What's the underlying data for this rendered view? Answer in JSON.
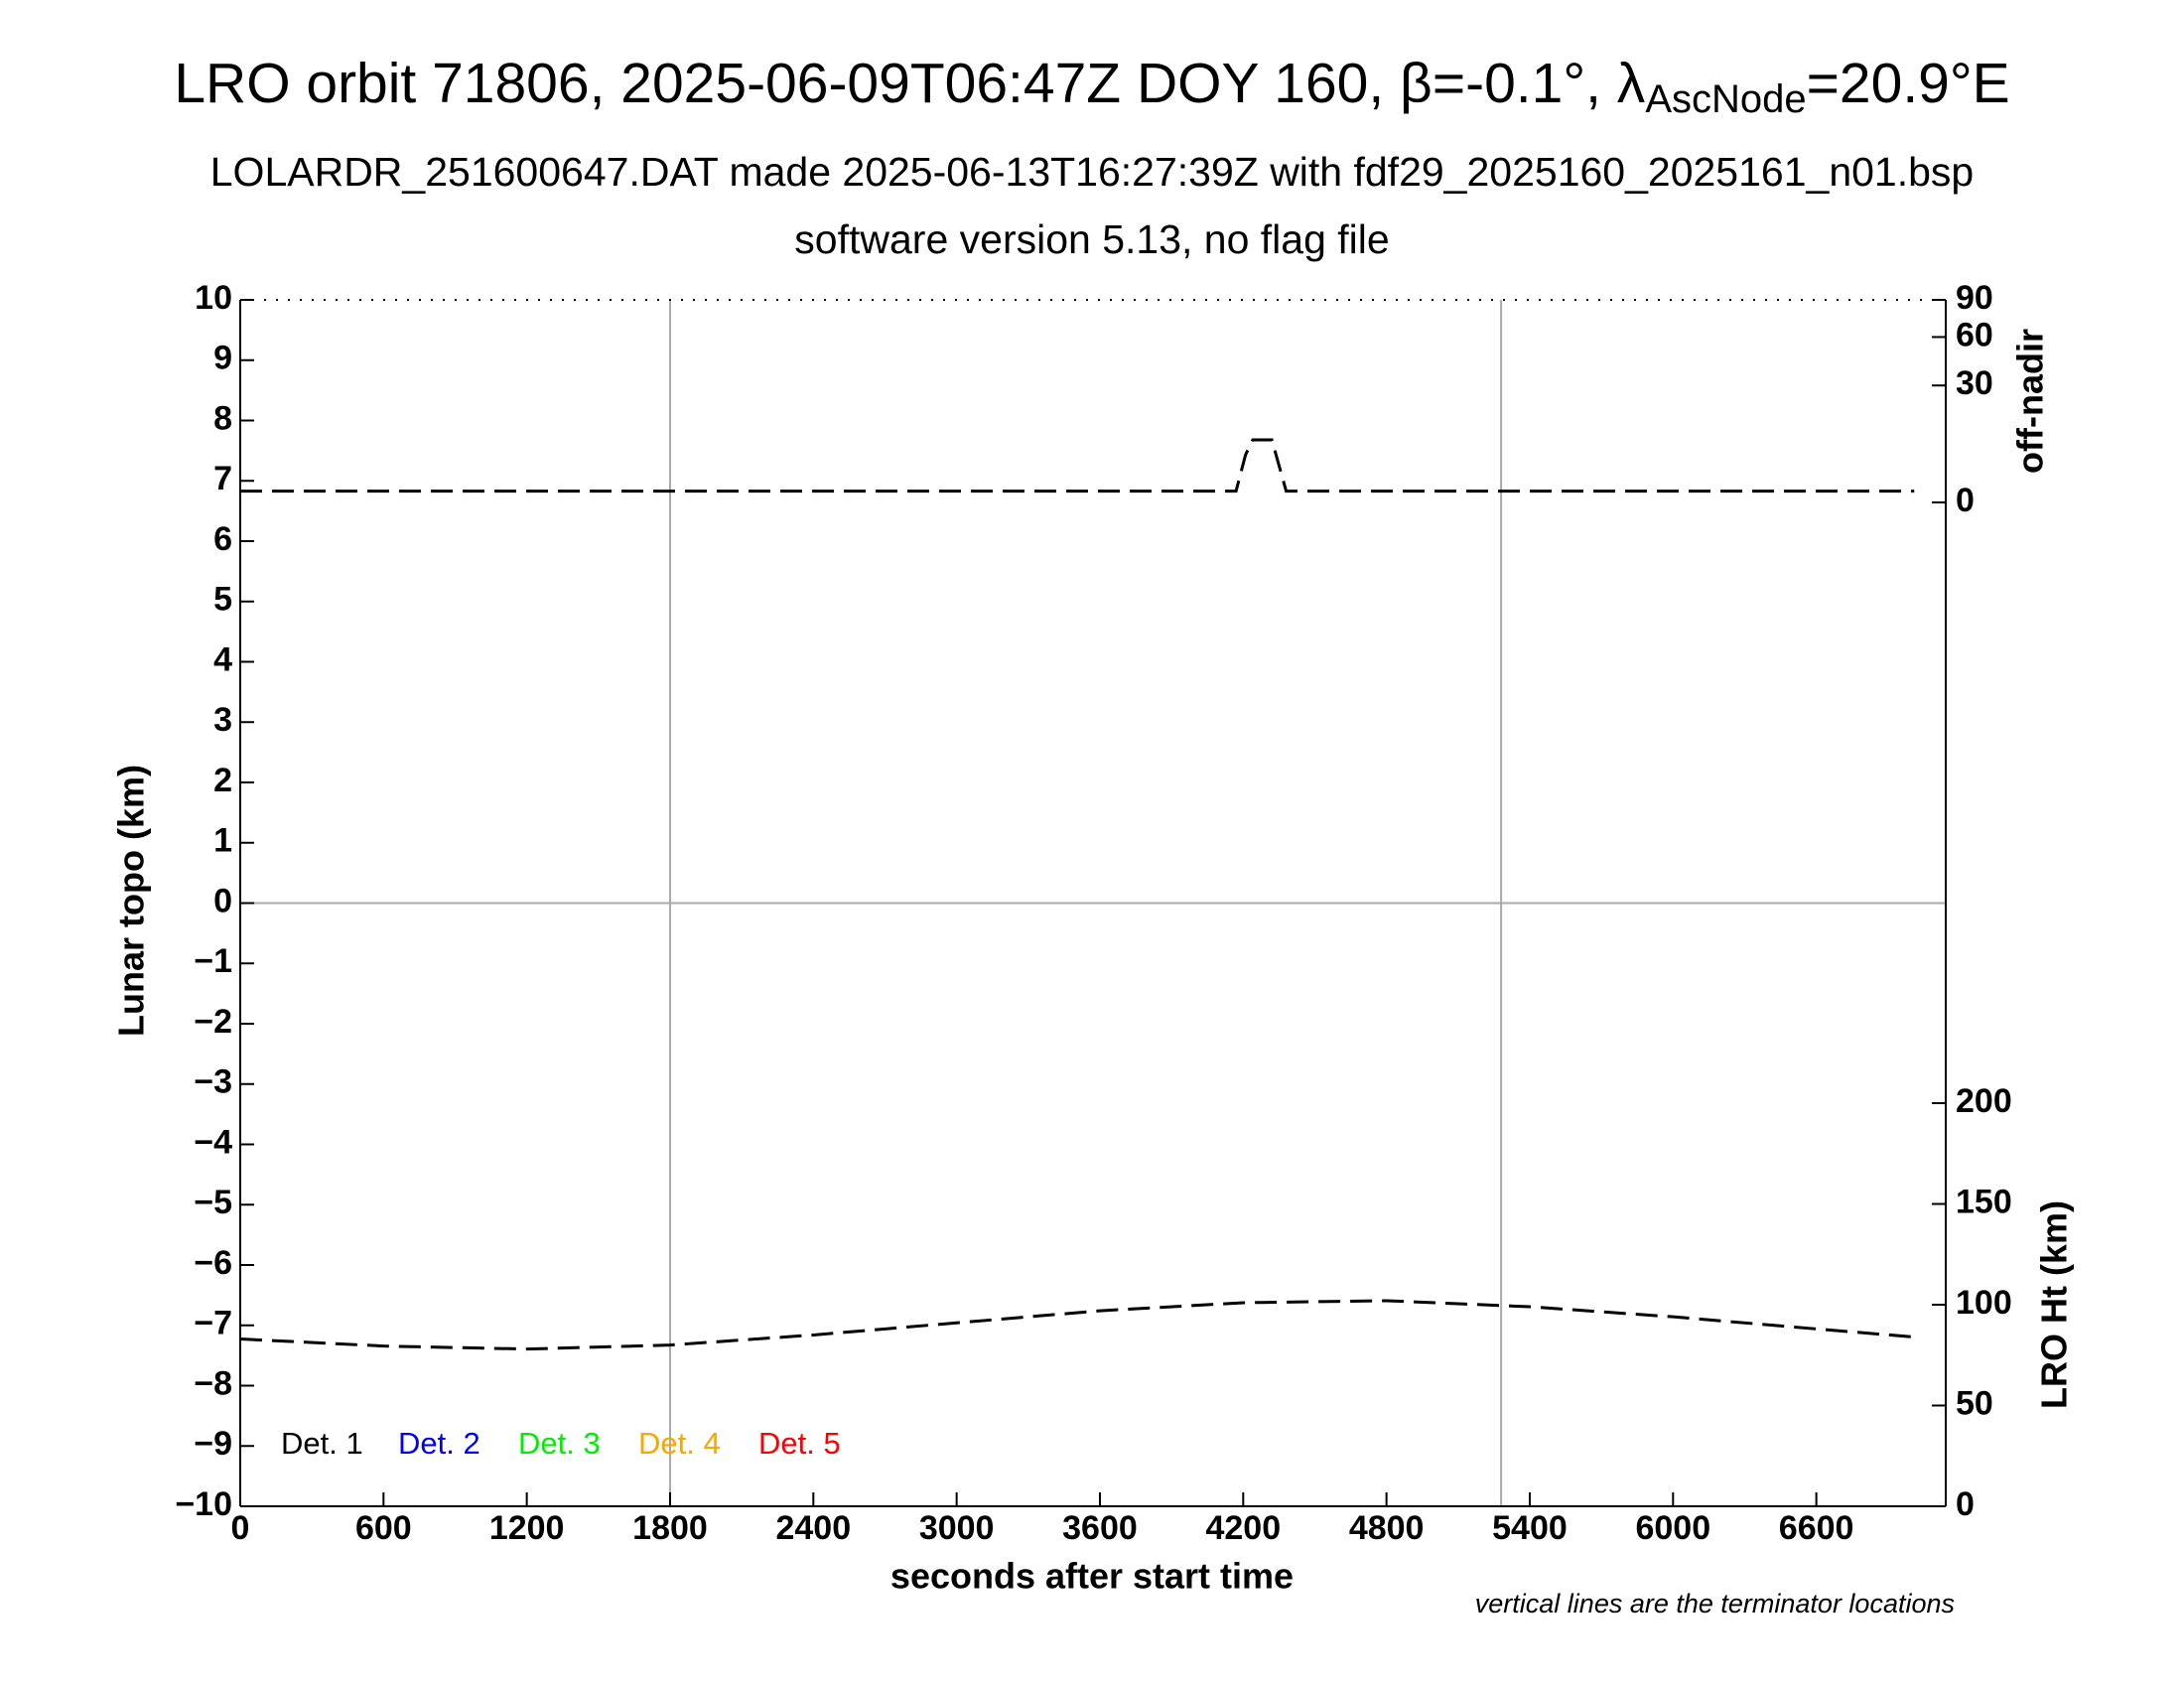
{
  "chart_data": {
    "type": "line",
    "title": [
      "LRO orbit 71806, 2025-06-09T06:47Z DOY 160, β=-0.1°, λ",
      "AscNode",
      "=20.9°E"
    ],
    "subtitle": [
      "LOLARDR_251600647.DAT made 2025-06-13T16:27:39Z with fdf29_2025160_2025161_n01.bsp",
      "software version 5.13, no flag file"
    ],
    "xlabel": "seconds after start time",
    "ylabel": "Lunar topo (km)",
    "y2label": "off-nadir",
    "y3label": "LRO Ht (km)",
    "footnote": "vertical lines are the terminator locations",
    "xlim": [
      0,
      7142
    ],
    "xticks": [
      0,
      600,
      1200,
      1800,
      2400,
      3000,
      3600,
      4200,
      4800,
      5400,
      6000,
      6600
    ],
    "ylim": [
      -10,
      10
    ],
    "yticks": [
      {
        "value": -10,
        "label": "−10"
      },
      {
        "value": -9,
        "label": "−9"
      },
      {
        "value": -8,
        "label": "−8"
      },
      {
        "value": -7,
        "label": "−7"
      },
      {
        "value": -6,
        "label": "−6"
      },
      {
        "value": -5,
        "label": "−5"
      },
      {
        "value": -4,
        "label": "−4"
      },
      {
        "value": -3,
        "label": "−3"
      },
      {
        "value": -2,
        "label": "−2"
      },
      {
        "value": -1,
        "label": "−1"
      },
      0,
      1,
      2,
      3,
      4,
      5,
      6,
      7,
      8,
      9,
      10
    ],
    "y2lim": [
      0,
      90
    ],
    "y2ticks": [
      0,
      30,
      60,
      90
    ],
    "y2scale": "sqrt",
    "y3lim": [
      0,
      200
    ],
    "y3ticks": [
      0,
      50,
      100,
      150,
      200
    ],
    "terminators": [
      1800,
      5280
    ],
    "hlines": [
      0
    ],
    "legend": [
      {
        "name": "Det. 1",
        "color": "#000000"
      },
      {
        "name": "Det. 2",
        "color": "#0000ff"
      },
      {
        "name": "Det. 3",
        "color": "#00ee00"
      },
      {
        "name": "Det. 4",
        "color": "#ffa500"
      },
      {
        "name": "Det. 5",
        "color": "#ff0000"
      }
    ],
    "series": [
      {
        "axis": "y2",
        "color": "#000000",
        "x": [
          0,
          1800,
          3600,
          4170,
          4210,
          4240,
          4320,
          4380,
          5400,
          7010
        ],
        "values": [
          0.28,
          0.28,
          0.28,
          0.28,
          5,
          8.6,
          8.6,
          0.28,
          0.28,
          0.28
        ]
      },
      {
        "axis": "y3",
        "color": "#000000",
        "x": [
          0,
          600,
          1200,
          1800,
          2400,
          3000,
          3600,
          4200,
          4800,
          5400,
          6000,
          6600,
          7010
        ],
        "values": [
          83,
          79.5,
          78,
          80,
          85,
          91,
          97,
          101,
          102,
          99,
          94,
          88,
          84
        ]
      }
    ]
  }
}
